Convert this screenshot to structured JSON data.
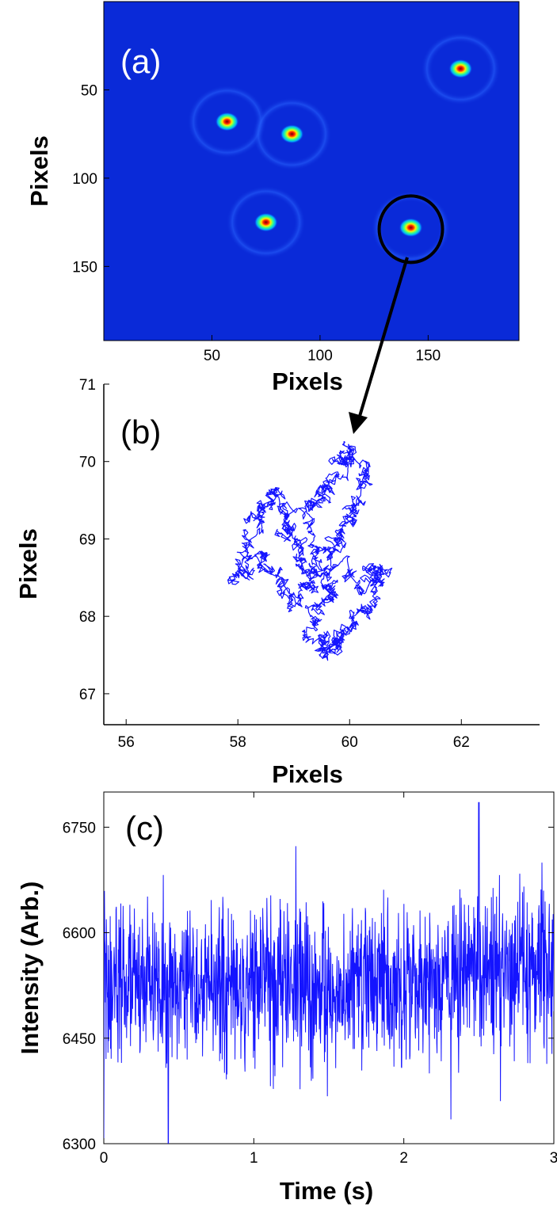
{
  "colors": {
    "image_background": "#0a2ad8",
    "trajectory": "#1414ff",
    "timetrace": "#1414ff",
    "axes": "#000000",
    "marker_circle": "#000000"
  },
  "chart_data": [
    {
      "panel": "(a)",
      "type": "heatmap",
      "xlabel": "Pixels",
      "ylabel": "Pixels",
      "xticks": [
        50,
        100,
        150
      ],
      "yticks": [
        50,
        100,
        150
      ],
      "xlim": [
        0,
        192
      ],
      "ylim": [
        192,
        0
      ],
      "y_reversed": true,
      "colormap": "jet",
      "spots": [
        {
          "x": 57,
          "y": 68
        },
        {
          "x": 87,
          "y": 75
        },
        {
          "x": 165,
          "y": 38
        },
        {
          "x": 75,
          "y": 125
        },
        {
          "x": 142,
          "y": 128
        }
      ],
      "highlighted_spot": {
        "x": 142,
        "y": 128
      }
    },
    {
      "panel": "(b)",
      "type": "line",
      "xlabel": "Pixels",
      "ylabel": "Pixels",
      "xlim": [
        55.6,
        63.4
      ],
      "ylim": [
        66.6,
        71
      ],
      "xticks": [
        56,
        58,
        60,
        62
      ],
      "yticks": [
        67,
        68,
        69,
        70,
        71
      ],
      "trajectory": {
        "description_points": [
          [
            59.0,
            69.0
          ],
          [
            58.7,
            69.6
          ],
          [
            58.3,
            69.3
          ],
          [
            58.0,
            68.5
          ],
          [
            58.5,
            68.8
          ],
          [
            59.0,
            68.2
          ],
          [
            59.4,
            68.5
          ],
          [
            59.3,
            69.4
          ],
          [
            59.7,
            69.7
          ],
          [
            59.9,
            70.2
          ],
          [
            60.3,
            69.8
          ],
          [
            60.0,
            69.2
          ],
          [
            59.6,
            68.9
          ],
          [
            60.1,
            68.4
          ],
          [
            60.6,
            68.6
          ],
          [
            60.3,
            68.1
          ],
          [
            59.8,
            67.7
          ],
          [
            59.6,
            67.5
          ],
          [
            59.3,
            67.9
          ],
          [
            59.7,
            68.3
          ],
          [
            59.2,
            68.7
          ],
          [
            58.8,
            69.1
          ]
        ]
      }
    },
    {
      "panel": "(c)",
      "type": "line",
      "xlabel": "Time (s)",
      "ylabel": "Intensity (Arb.)",
      "xlim": [
        0,
        3
      ],
      "ylim": [
        6300,
        6800
      ],
      "xticks": [
        0,
        1,
        2,
        3
      ],
      "yticks": [
        6300,
        6450,
        6600,
        6750
      ],
      "series_summary": {
        "mean": 6525,
        "typical_range": [
          6400,
          6650
        ],
        "min": 6300,
        "min_time": 0.43,
        "max": 6785,
        "max_time": 2.5
      }
    }
  ]
}
